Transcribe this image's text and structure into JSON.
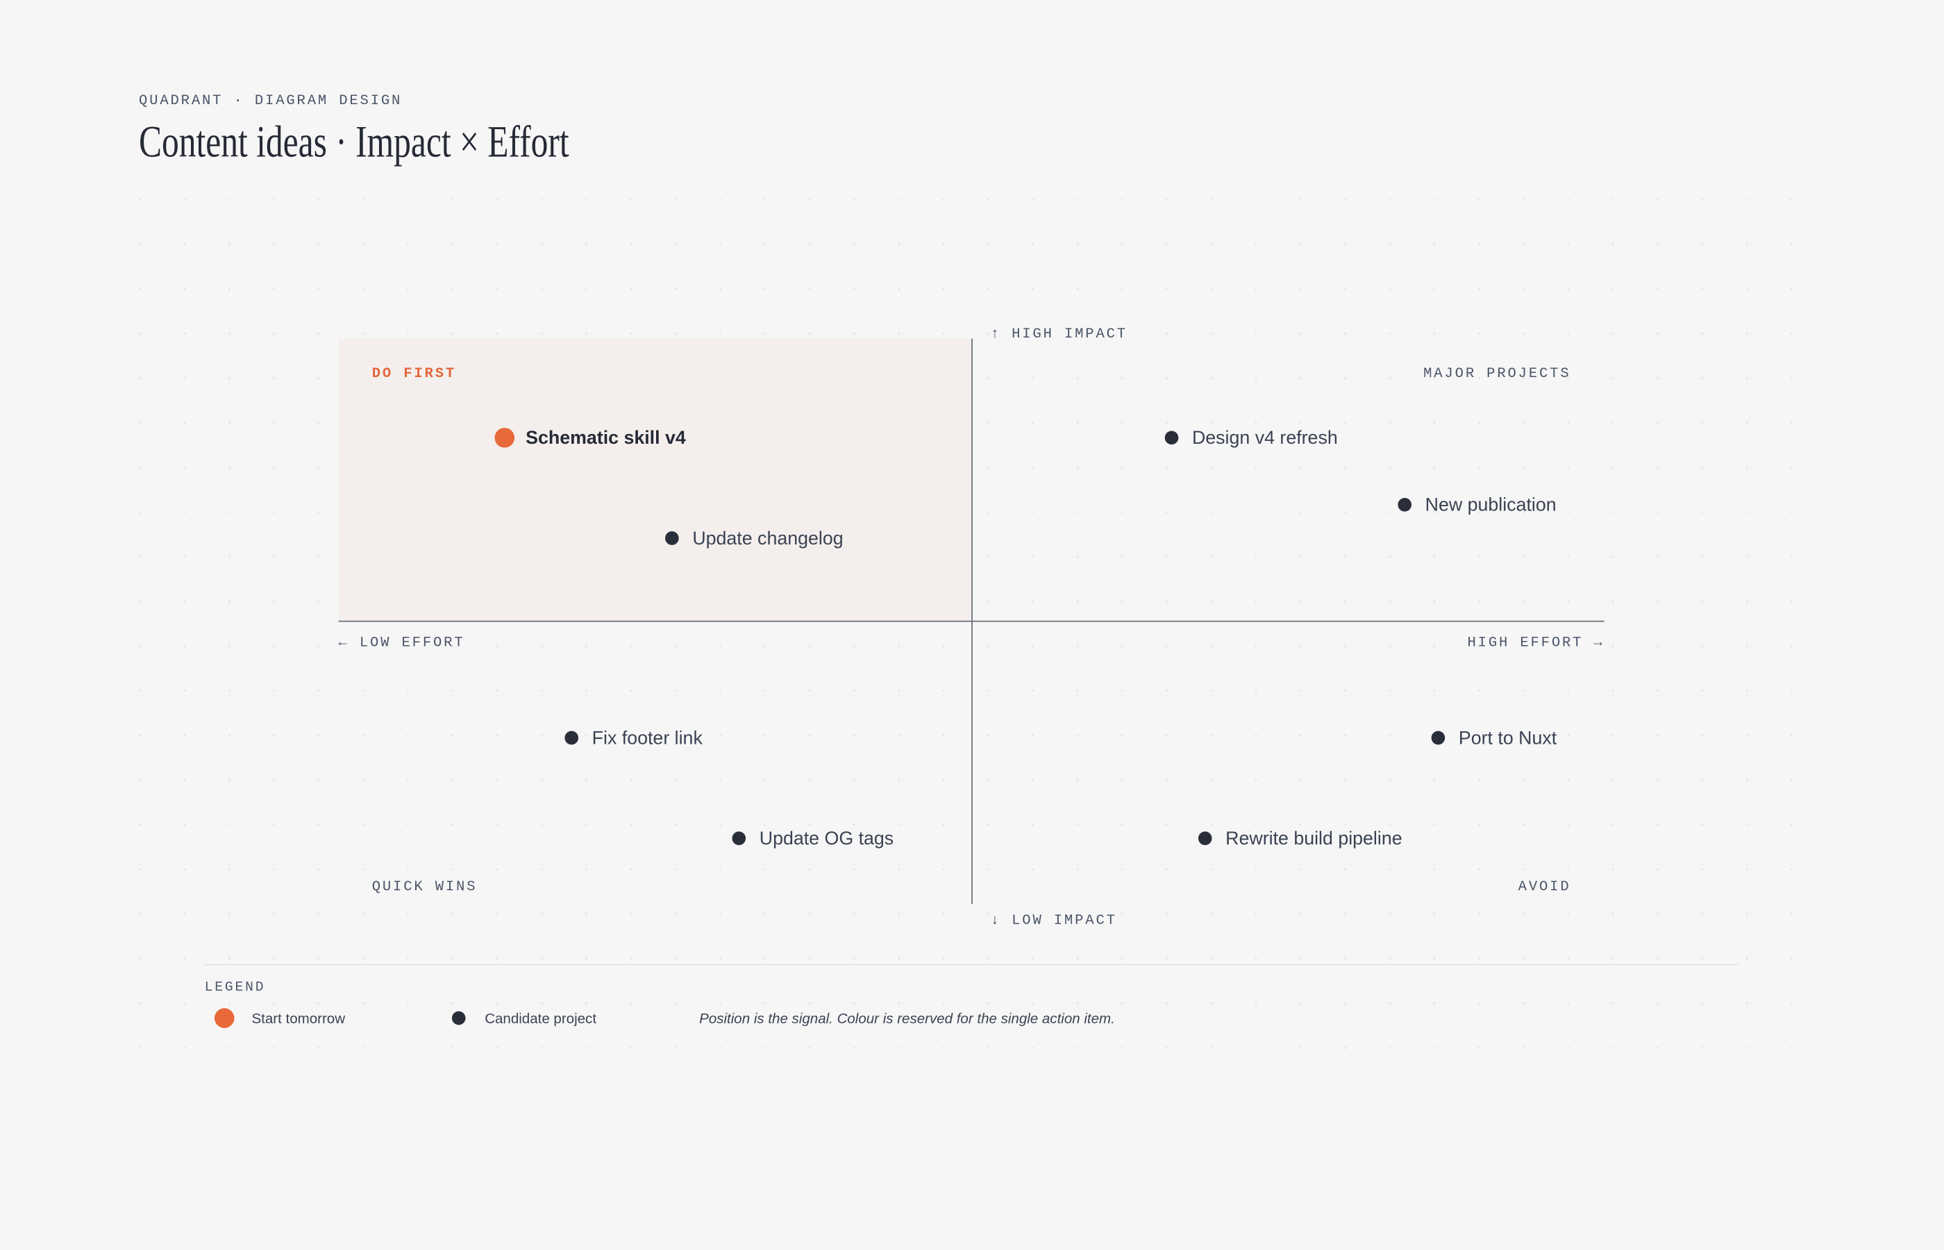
{
  "header": {
    "eyebrow": "QUADRANT · DIAGRAM DESIGN",
    "title": "Content ideas · Impact × Effort"
  },
  "axes": {
    "top": "↑ HIGH IMPACT",
    "bottom": "↓ LOW IMPACT",
    "left": "← LOW EFFORT",
    "right": "HIGH EFFORT →"
  },
  "quadrants": {
    "top_left": "DO FIRST",
    "top_right": "MAJOR PROJECTS",
    "bottom_left": "QUICK WINS",
    "bottom_right": "AVOID"
  },
  "items": [
    "Schematic skill v4",
    "Update changelog",
    "Design v4 refresh",
    "New publication",
    "Fix footer link",
    "Update OG tags",
    "Port to Nuxt",
    "Rewrite build pipeline"
  ],
  "legend": {
    "title": "LEGEND",
    "entries": [
      "Start tomorrow",
      "Candidate project"
    ],
    "note": "Position is the signal. Colour is reserved for the single action item."
  }
}
